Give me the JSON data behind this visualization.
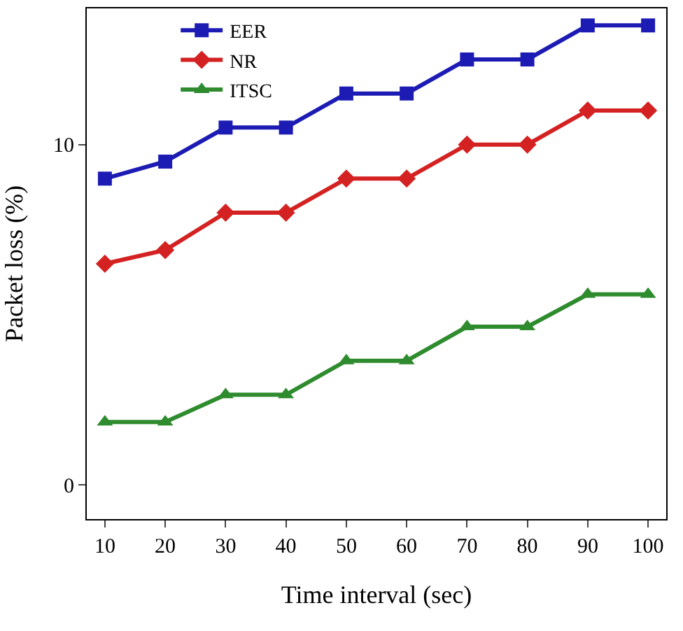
{
  "chart_data": {
    "type": "line",
    "xlabel": "Time interval (sec)",
    "ylabel": "Packet loss (%)",
    "x": [
      10,
      20,
      30,
      40,
      50,
      60,
      70,
      80,
      90,
      100
    ],
    "xlim": [
      7,
      103
    ],
    "xticks": [
      10,
      20,
      30,
      40,
      50,
      60,
      70,
      80,
      90,
      100
    ],
    "ylim": [
      -1,
      14
    ],
    "yticks": [
      0,
      10
    ],
    "grid": false,
    "legend": "top left",
    "line_style": "solid",
    "series": [
      {
        "name": "EER",
        "color": "#1c1cb4",
        "marker": "square",
        "values": [
          9.0,
          9.5,
          10.5,
          10.5,
          11.5,
          11.5,
          12.5,
          12.5,
          13.5,
          13.5
        ]
      },
      {
        "name": "NR",
        "color": "#d42222",
        "marker": "diamond",
        "values": [
          6.5,
          6.9,
          8.0,
          8.0,
          9.0,
          9.0,
          10.0,
          10.0,
          11.0,
          11.0
        ]
      },
      {
        "name": "ITSC",
        "color": "#2e8b2e",
        "marker": "triangle",
        "values": [
          1.85,
          1.85,
          2.65,
          2.65,
          3.65,
          3.65,
          4.65,
          4.65,
          5.6,
          5.6
        ]
      }
    ]
  }
}
